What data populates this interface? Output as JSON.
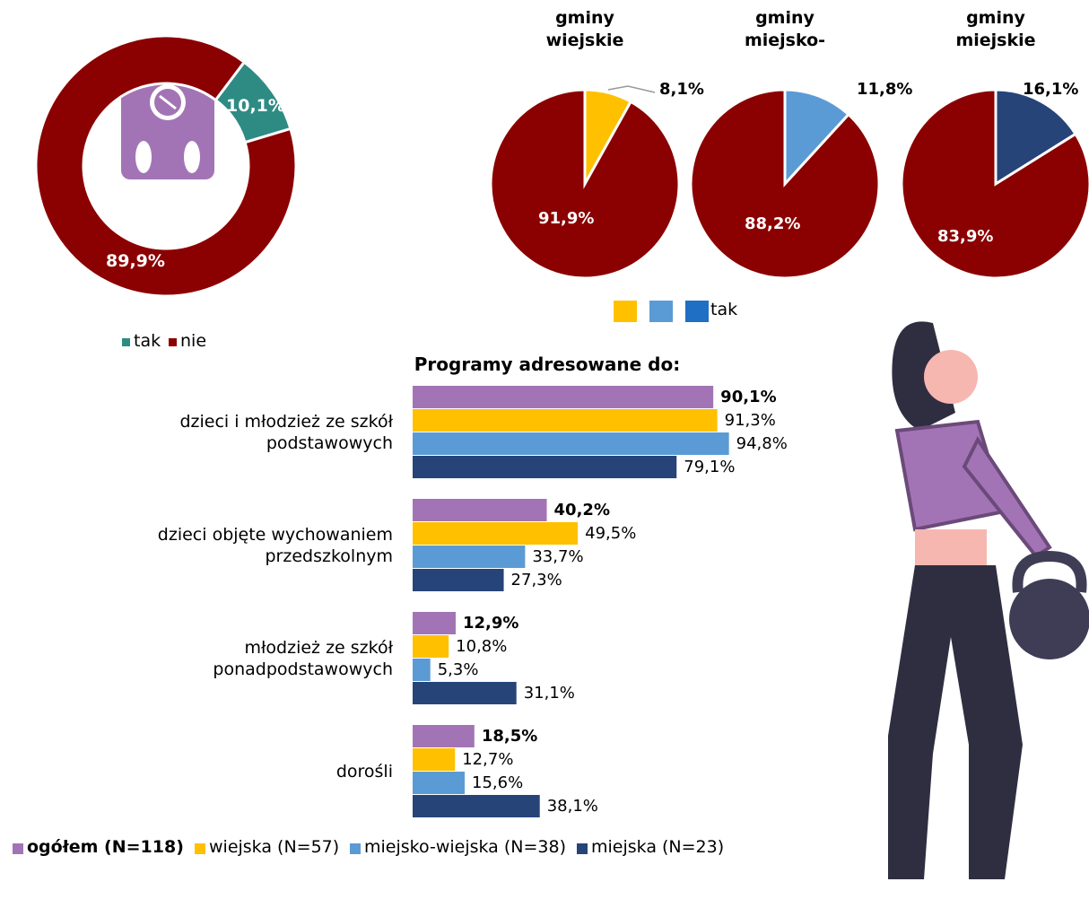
{
  "chart_data": [
    {
      "type": "donut",
      "categories": [
        "tak",
        "nie"
      ],
      "values": [
        10.1,
        89.9
      ],
      "value_labels": [
        "10,1%",
        "89,9%"
      ],
      "colors": [
        "#2e8b84",
        "#8b0000"
      ],
      "legend": "bottom"
    },
    {
      "type": "pie",
      "title": "gminy\nwiejskie",
      "values": [
        8.1,
        91.9
      ],
      "value_labels": [
        "8,1%",
        "91,9%"
      ],
      "colors": [
        "#ffc000",
        "#8b0000"
      ]
    },
    {
      "type": "pie",
      "title": "gminy\nmiejsko-",
      "values": [
        11.8,
        88.2
      ],
      "value_labels": [
        "11,8%",
        "88,2%"
      ],
      "colors": [
        "#5b9bd5",
        "#8b0000"
      ]
    },
    {
      "type": "pie",
      "title": "gminy\nmiejskie",
      "values": [
        16.1,
        83.9
      ],
      "value_labels": [
        "16,1%",
        "83,9%"
      ],
      "colors": [
        "#264478",
        "#8b0000"
      ]
    },
    {
      "type": "hbar",
      "title": "Programy adresowane do:",
      "categories": [
        "dzieci i młodzież ze szkół\npodstawowych",
        "dzieci objęte wychowaniem\nprzedszkolnym",
        "młodzież ze szkół\nponadpodstawowych",
        "dorośli"
      ],
      "series": [
        {
          "name": "ogółem (N=118)",
          "color": "#a374b5",
          "values": [
            90.1,
            40.2,
            12.9,
            18.5
          ],
          "value_labels": [
            "90,1%",
            "40,2%",
            "12,9%",
            "18,5%"
          ]
        },
        {
          "name": "wiejska (N=57)",
          "color": "#ffc000",
          "values": [
            91.3,
            49.5,
            10.8,
            12.7
          ],
          "value_labels": [
            "91,3%",
            "49,5%",
            "10,8%",
            "12,7%"
          ]
        },
        {
          "name": "miejsko-wiejska (N=38)",
          "color": "#5b9bd5",
          "values": [
            94.8,
            33.7,
            5.3,
            15.6
          ],
          "value_labels": [
            "94,8%",
            "33,7%",
            "5,3%",
            "15,6%"
          ]
        },
        {
          "name": "miejska (N=23)",
          "color": "#264478",
          "values": [
            79.1,
            27.3,
            31.1,
            38.1
          ],
          "value_labels": [
            "79,1%",
            "27,3%",
            "31,1%",
            "38,1%"
          ]
        }
      ],
      "legend": "bottom"
    }
  ],
  "pie_legend": {
    "colors": [
      "#ffc000",
      "#5b9bd5",
      "#1f6fc5"
    ],
    "label": "tak"
  }
}
